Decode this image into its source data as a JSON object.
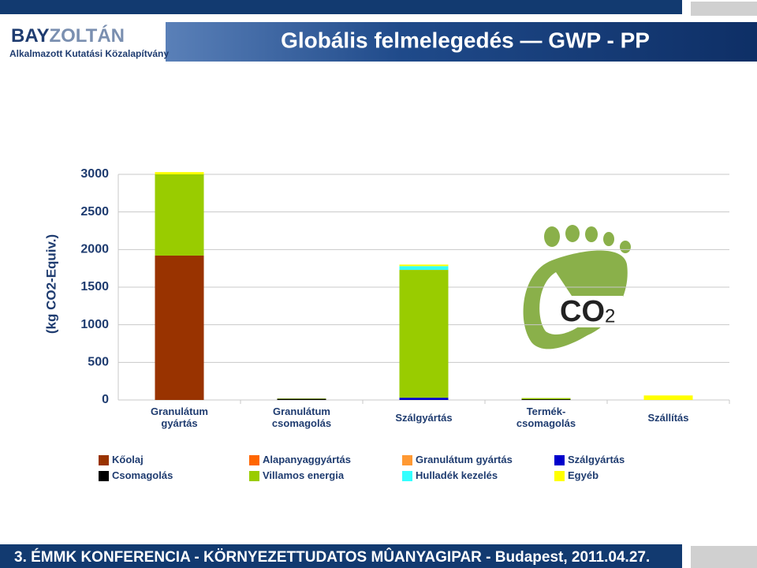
{
  "header": {
    "logo_a": "BAY",
    "logo_b": "ZOLTÁN",
    "logo_subtitle": "Alkalmazott Kutatási Közalapítvány",
    "title": "Globális felmelegedés — GWP - PP"
  },
  "icon": {
    "text": "CO",
    "subscript": "2"
  },
  "chart_data": {
    "type": "bar",
    "stacked": true,
    "ylabel": "(kg CO2-Equiv.)",
    "categories": [
      "Granulátum\ngyártás",
      "Granulátum\ncsomagolás",
      "Szálgyártás",
      "Termék-\ncsomagolás",
      "Szállítás"
    ],
    "series": [
      {
        "name": "Kőolaj",
        "color": "#993300",
        "values": [
          1920,
          0,
          0,
          0,
          0
        ]
      },
      {
        "name": "Alapanyaggyártás",
        "color": "#ff6600",
        "values": [
          0,
          0,
          0,
          0,
          0
        ]
      },
      {
        "name": "Granulátum gyártás",
        "color": "#ff9933",
        "values": [
          0,
          0,
          0,
          0,
          0
        ]
      },
      {
        "name": "Szálgyártás",
        "color": "#0000cc",
        "values": [
          0,
          0,
          30,
          0,
          0
        ]
      },
      {
        "name": "Csomagolás",
        "color": "#000000",
        "values": [
          0,
          15,
          0,
          10,
          0
        ]
      },
      {
        "name": "Villamos energia",
        "color": "#99cc00",
        "values": [
          1080,
          5,
          1700,
          15,
          0
        ]
      },
      {
        "name": "Hulladék kezelés",
        "color": "#33ffff",
        "values": [
          0,
          0,
          50,
          0,
          0
        ]
      },
      {
        "name": "Egyéb",
        "color": "#ffff00",
        "values": [
          30,
          0,
          20,
          0,
          60
        ]
      }
    ],
    "ylim": [
      0,
      3000
    ],
    "yticks": [
      0,
      500,
      1000,
      1500,
      2000,
      2500,
      3000
    ],
    "grid": true
  },
  "footer": {
    "text": "3. ÉMMK KONFERENCIA - KÖRNYEZETTUDATOS MÛANYAGIPAR  - Budapest, 2011.04.27."
  }
}
